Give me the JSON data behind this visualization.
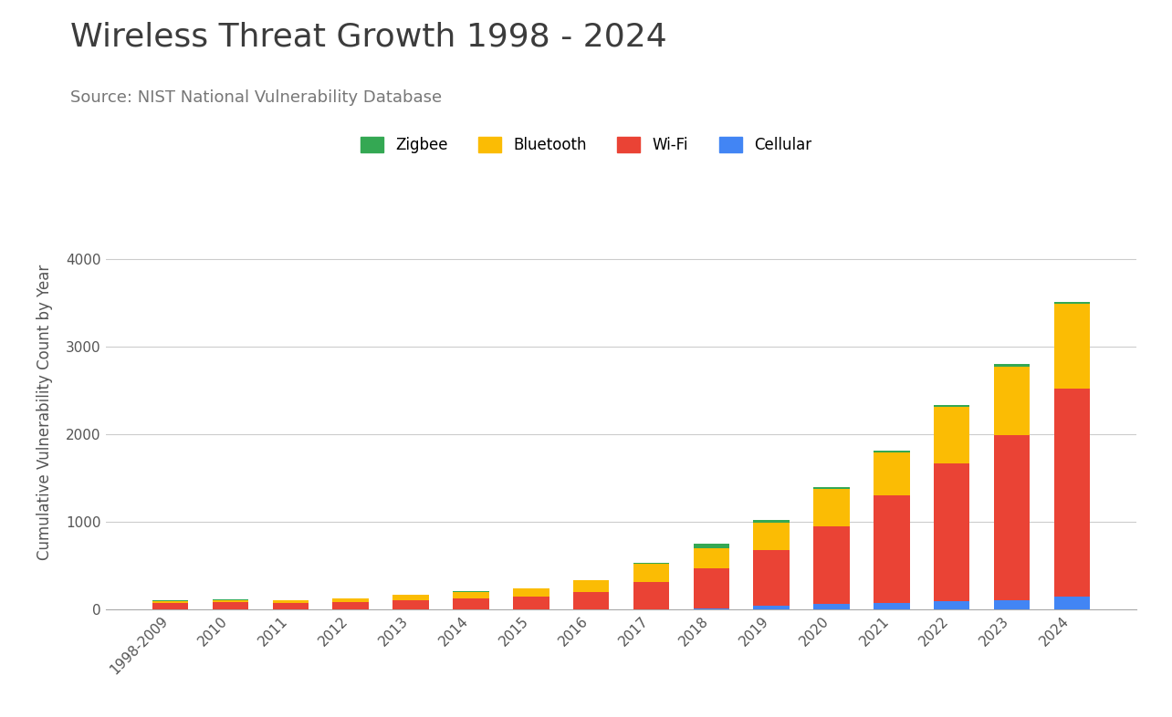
{
  "title": "Wireless Threat Growth 1998 - 2024",
  "subtitle": "Source: NIST National Vulnerability Database",
  "ylabel": "Cumulative Vulnerability Count by Year",
  "categories": [
    "1998-2009",
    "2010",
    "2011",
    "2012",
    "2013",
    "2014",
    "2015",
    "2016",
    "2017",
    "2018",
    "2019",
    "2020",
    "2021",
    "2022",
    "2023",
    "2024"
  ],
  "wifi": [
    75,
    80,
    75,
    85,
    110,
    130,
    150,
    195,
    310,
    460,
    640,
    890,
    1230,
    1580,
    1880,
    2380
  ],
  "bluetooth": [
    20,
    28,
    28,
    38,
    55,
    70,
    90,
    135,
    210,
    230,
    310,
    430,
    490,
    640,
    780,
    960
  ],
  "zigbee": [
    5,
    5,
    5,
    5,
    5,
    5,
    5,
    5,
    5,
    50,
    30,
    20,
    20,
    25,
    35,
    25
  ],
  "cellular": [
    0,
    0,
    0,
    0,
    0,
    0,
    0,
    0,
    5,
    10,
    40,
    60,
    70,
    90,
    110,
    145
  ],
  "wifi_color": "#ea4335",
  "bluetooth_color": "#fbbc04",
  "zigbee_color": "#34a853",
  "cellular_color": "#4285f4",
  "background_color": "#ffffff",
  "grid_color": "#cccccc",
  "title_color": "#3c3c3c",
  "subtitle_color": "#777777",
  "ylim": [
    0,
    4500
  ],
  "yticks": [
    0,
    1000,
    2000,
    3000,
    4000
  ]
}
